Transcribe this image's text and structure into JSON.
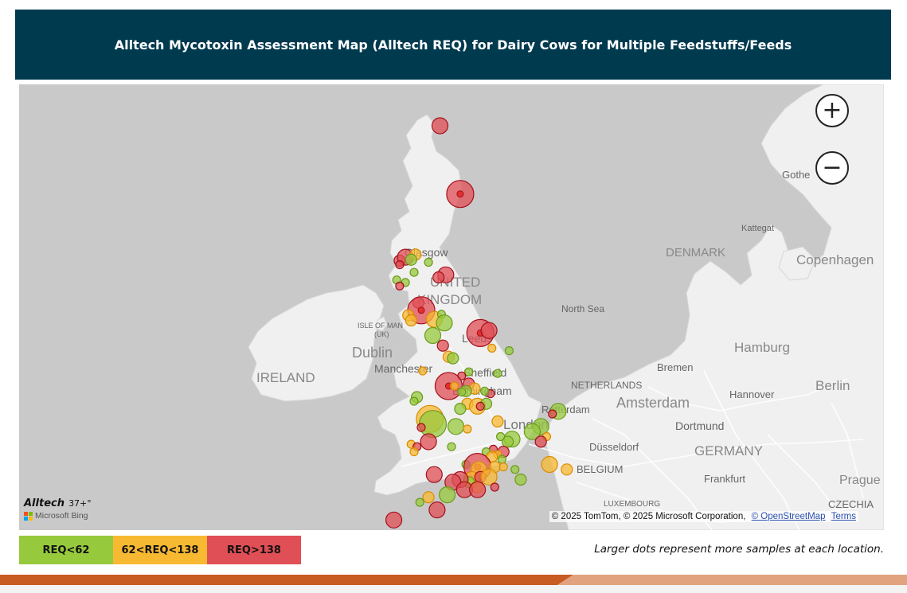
{
  "header": {
    "title": "Alltech Mycotoxin Assessment Map (Alltech REQ) for Dairy Cows for  Multiple Feedstuffs/Feeds"
  },
  "map": {
    "place_labels": [
      {
        "id": "glasgow",
        "text": "Glasgow"
      },
      {
        "id": "united",
        "text": "UNITED"
      },
      {
        "id": "kingdom",
        "text": "KINGDOM"
      },
      {
        "id": "isle-of-man",
        "text": "ISLE OF MAN"
      },
      {
        "id": "uk",
        "text": "(UK)"
      },
      {
        "id": "dublin",
        "text": "Dublin"
      },
      {
        "id": "ireland",
        "text": "IRELAND"
      },
      {
        "id": "leeds",
        "text": "Leeds"
      },
      {
        "id": "manchester",
        "text": "Manchester"
      },
      {
        "id": "sheffield",
        "text": "Sheffield"
      },
      {
        "id": "birmingham",
        "text": "Birmingham"
      },
      {
        "id": "london",
        "text": "London"
      },
      {
        "id": "north-sea",
        "text": "North Sea"
      },
      {
        "id": "denmark",
        "text": "DENMARK"
      },
      {
        "id": "copenhagen",
        "text": "Copenhagen"
      },
      {
        "id": "kattegat",
        "text": "Kattegat"
      },
      {
        "id": "gothenburg",
        "text": "Gothe"
      },
      {
        "id": "hamburg",
        "text": "Hamburg"
      },
      {
        "id": "bremen",
        "text": "Bremen"
      },
      {
        "id": "berlin",
        "text": "Berlin"
      },
      {
        "id": "hannover",
        "text": "Hannover"
      },
      {
        "id": "netherlands",
        "text": "NETHERLANDS"
      },
      {
        "id": "amsterdam",
        "text": "Amsterdam"
      },
      {
        "id": "rotterdam",
        "text": "Rotterdam"
      },
      {
        "id": "dortmund",
        "text": "Dortmund"
      },
      {
        "id": "germany",
        "text": "GERMANY"
      },
      {
        "id": "dusseldorf",
        "text": "Düsseldorf"
      },
      {
        "id": "belgium",
        "text": "BELGIUM"
      },
      {
        "id": "frankfurt",
        "text": "Frankfurt"
      },
      {
        "id": "prague",
        "text": "Prague"
      },
      {
        "id": "luxembourg",
        "text": "LUXEMBOURG"
      },
      {
        "id": "czechia",
        "text": "CZECHIA"
      }
    ],
    "zoom_in_symbol": "+",
    "zoom_out_symbol": "−",
    "attribution": {
      "text": "© 2025 TomTom, © 2025 Microsoft Corporation,",
      "osm_link": "© OpenStreetMap",
      "terms_link": "Terms"
    },
    "brand": {
      "alltech": "Alltech",
      "suffix": "37+°",
      "bing": "Microsoft Bing"
    }
  },
  "legend": [
    {
      "id": "low",
      "label": "REQ<62",
      "color": "#97c93d"
    },
    {
      "id": "mid",
      "label": "62<REQ<138",
      "color": "#f8b932"
    },
    {
      "id": "high",
      "label": "REQ>138",
      "color": "#e04f55"
    }
  ],
  "note": "Larger dots represent more samples at each location.",
  "colors": {
    "header_bg": "#003a4f",
    "map_water": "#c9c9c9",
    "map_land": "#f0f0f0",
    "bottom_bar": "#c85a23"
  },
  "markers": [
    {
      "lat": 58.45,
      "lon": -3.3,
      "category": "high",
      "size": "medium"
    },
    {
      "lat": 57.1,
      "lon": -2.6,
      "category": "high",
      "size": "large"
    },
    {
      "lat": 55.78,
      "lon": -4.7,
      "category": "high",
      "size": "small"
    },
    {
      "lat": 55.85,
      "lon": -4.5,
      "category": "high",
      "size": "medium"
    },
    {
      "lat": 55.9,
      "lon": -4.15,
      "category": "mid",
      "size": "small"
    },
    {
      "lat": 55.8,
      "lon": -4.3,
      "category": "low",
      "size": "small"
    },
    {
      "lat": 55.75,
      "lon": -3.7,
      "category": "low",
      "size": "tiny"
    },
    {
      "lat": 55.7,
      "lon": -4.7,
      "category": "high",
      "size": "tiny"
    },
    {
      "lat": 55.55,
      "lon": -4.2,
      "category": "low",
      "size": "tiny"
    },
    {
      "lat": 55.5,
      "lon": -3.1,
      "category": "high",
      "size": "medium"
    },
    {
      "lat": 55.45,
      "lon": -3.35,
      "category": "high",
      "size": "small"
    },
    {
      "lat": 55.4,
      "lon": -4.8,
      "category": "low",
      "size": "tiny"
    },
    {
      "lat": 55.35,
      "lon": -4.5,
      "category": "low",
      "size": "tiny"
    },
    {
      "lat": 55.28,
      "lon": -4.7,
      "category": "high",
      "size": "tiny"
    },
    {
      "lat": 54.95,
      "lon": -4.05,
      "category": "high",
      "size": "small"
    },
    {
      "lat": 54.8,
      "lon": -3.95,
      "category": "high",
      "size": "large"
    },
    {
      "lat": 54.7,
      "lon": -4.4,
      "category": "mid",
      "size": "small"
    },
    {
      "lat": 54.62,
      "lon": -3.5,
      "category": "mid",
      "size": "medium"
    },
    {
      "lat": 54.72,
      "lon": -3.25,
      "category": "low",
      "size": "tiny"
    },
    {
      "lat": 54.55,
      "lon": -3.15,
      "category": "low",
      "size": "medium"
    },
    {
      "lat": 54.6,
      "lon": -4.3,
      "category": "mid",
      "size": "small"
    },
    {
      "lat": 54.3,
      "lon": -3.55,
      "category": "low",
      "size": "medium"
    },
    {
      "lat": 54.35,
      "lon": -1.9,
      "category": "high",
      "size": "large"
    },
    {
      "lat": 54.4,
      "lon": -1.6,
      "category": "high",
      "size": "medium"
    },
    {
      "lat": 54.1,
      "lon": -3.2,
      "category": "high",
      "size": "small"
    },
    {
      "lat": 53.88,
      "lon": -3.0,
      "category": "mid",
      "size": "small"
    },
    {
      "lat": 53.85,
      "lon": -2.85,
      "category": "low",
      "size": "small"
    },
    {
      "lat": 54.05,
      "lon": -1.5,
      "category": "mid",
      "size": "tiny"
    },
    {
      "lat": 54.0,
      "lon": -0.9,
      "category": "low",
      "size": "tiny"
    },
    {
      "lat": 53.6,
      "lon": -3.9,
      "category": "mid",
      "size": "tiny"
    },
    {
      "lat": 53.58,
      "lon": -2.3,
      "category": "low",
      "size": "tiny"
    },
    {
      "lat": 53.55,
      "lon": -1.3,
      "category": "low",
      "size": "tiny"
    },
    {
      "lat": 53.5,
      "lon": -2.55,
      "category": "high",
      "size": "tiny"
    },
    {
      "lat": 53.3,
      "lon": -3.0,
      "category": "high",
      "size": "large"
    },
    {
      "lat": 53.35,
      "lon": -2.3,
      "category": "high",
      "size": "small"
    },
    {
      "lat": 53.3,
      "lon": -2.8,
      "category": "mid",
      "size": "tiny"
    },
    {
      "lat": 53.25,
      "lon": -2.1,
      "category": "mid",
      "size": "small"
    },
    {
      "lat": 53.2,
      "lon": -2.4,
      "category": "low",
      "size": "small"
    },
    {
      "lat": 53.18,
      "lon": -2.55,
      "category": "low",
      "size": "tiny"
    },
    {
      "lat": 53.15,
      "lon": -1.55,
      "category": "high",
      "size": "tiny"
    },
    {
      "lat": 53.2,
      "lon": -1.75,
      "category": "low",
      "size": "tiny"
    },
    {
      "lat": 53.08,
      "lon": -4.1,
      "category": "low",
      "size": "small"
    },
    {
      "lat": 53.0,
      "lon": -4.2,
      "category": "low",
      "size": "tiny"
    },
    {
      "lat": 52.95,
      "lon": -2.35,
      "category": "mid",
      "size": "small"
    },
    {
      "lat": 52.9,
      "lon": -2.0,
      "category": "mid",
      "size": "medium"
    },
    {
      "lat": 52.85,
      "lon": -2.6,
      "category": "low",
      "size": "small"
    },
    {
      "lat": 52.95,
      "lon": -1.7,
      "category": "low",
      "size": "small"
    },
    {
      "lat": 52.9,
      "lon": -1.9,
      "category": "high",
      "size": "tiny"
    },
    {
      "lat": 52.8,
      "lon": 0.8,
      "category": "low",
      "size": "medium"
    },
    {
      "lat": 52.75,
      "lon": 0.6,
      "category": "high",
      "size": "tiny"
    },
    {
      "lat": 52.65,
      "lon": -3.65,
      "category": "mid",
      "size": "large"
    },
    {
      "lat": 52.55,
      "lon": -3.55,
      "category": "low",
      "size": "large"
    },
    {
      "lat": 52.5,
      "lon": -2.75,
      "category": "low",
      "size": "medium"
    },
    {
      "lat": 52.45,
      "lon": -2.35,
      "category": "mid",
      "size": "tiny"
    },
    {
      "lat": 52.48,
      "lon": -3.95,
      "category": "high",
      "size": "tiny"
    },
    {
      "lat": 52.6,
      "lon": -1.3,
      "category": "mid",
      "size": "small"
    },
    {
      "lat": 52.5,
      "lon": 0.2,
      "category": "low",
      "size": "medium"
    },
    {
      "lat": 52.4,
      "lon": -0.1,
      "category": "low",
      "size": "medium"
    },
    {
      "lat": 52.3,
      "lon": 0.4,
      "category": "mid",
      "size": "tiny"
    },
    {
      "lat": 52.2,
      "lon": -3.7,
      "category": "high",
      "size": "medium"
    },
    {
      "lat": 52.15,
      "lon": -4.3,
      "category": "mid",
      "size": "tiny"
    },
    {
      "lat": 52.1,
      "lon": -4.1,
      "category": "high",
      "size": "tiny"
    },
    {
      "lat": 52.0,
      "lon": -4.2,
      "category": "mid",
      "size": "tiny"
    },
    {
      "lat": 52.25,
      "lon": -0.8,
      "category": "low",
      "size": "medium"
    },
    {
      "lat": 52.2,
      "lon": -0.95,
      "category": "low",
      "size": "small"
    },
    {
      "lat": 52.3,
      "lon": -1.2,
      "category": "low",
      "size": "tiny"
    },
    {
      "lat": 52.2,
      "lon": 0.2,
      "category": "high",
      "size": "small"
    },
    {
      "lat": 52.1,
      "lon": -2.9,
      "category": "low",
      "size": "tiny"
    },
    {
      "lat": 52.05,
      "lon": -1.45,
      "category": "high",
      "size": "tiny"
    },
    {
      "lat": 52.0,
      "lon": -1.1,
      "category": "high",
      "size": "small"
    },
    {
      "lat": 51.95,
      "lon": -1.3,
      "category": "mid",
      "size": "tiny"
    },
    {
      "lat": 52.0,
      "lon": -1.7,
      "category": "low",
      "size": "tiny"
    },
    {
      "lat": 51.9,
      "lon": -1.5,
      "category": "mid",
      "size": "small"
    },
    {
      "lat": 51.85,
      "lon": -1.15,
      "category": "low",
      "size": "tiny"
    },
    {
      "lat": 51.75,
      "lon": -2.4,
      "category": "low",
      "size": "tiny"
    },
    {
      "lat": 51.7,
      "lon": -2.0,
      "category": "high",
      "size": "large"
    },
    {
      "lat": 51.65,
      "lon": -1.95,
      "category": "mid",
      "size": "medium"
    },
    {
      "lat": 51.7,
      "lon": -1.4,
      "category": "mid",
      "size": "small"
    },
    {
      "lat": 51.7,
      "lon": -1.1,
      "category": "mid",
      "size": "tiny"
    },
    {
      "lat": 51.65,
      "lon": -0.7,
      "category": "low",
      "size": "tiny"
    },
    {
      "lat": 51.75,
      "lon": 0.5,
      "category": "mid",
      "size": "medium"
    },
    {
      "lat": 51.65,
      "lon": 1.1,
      "category": "mid",
      "size": "small"
    },
    {
      "lat": 51.55,
      "lon": -3.5,
      "category": "high",
      "size": "medium"
    },
    {
      "lat": 51.45,
      "lon": -2.2,
      "category": "mid",
      "size": "medium"
    },
    {
      "lat": 51.5,
      "lon": -1.9,
      "category": "high",
      "size": "small"
    },
    {
      "lat": 51.4,
      "lon": -2.3,
      "category": "low",
      "size": "small"
    },
    {
      "lat": 51.45,
      "lon": -2.6,
      "category": "high",
      "size": "medium"
    },
    {
      "lat": 51.4,
      "lon": -2.85,
      "category": "high",
      "size": "medium"
    },
    {
      "lat": 51.5,
      "lon": -1.6,
      "category": "mid",
      "size": "medium"
    },
    {
      "lat": 51.45,
      "lon": -0.5,
      "category": "low",
      "size": "small"
    },
    {
      "lat": 51.3,
      "lon": -2.0,
      "category": "mid",
      "size": "small"
    },
    {
      "lat": 51.25,
      "lon": -2.45,
      "category": "high",
      "size": "medium"
    },
    {
      "lat": 51.25,
      "lon": -2.0,
      "category": "high",
      "size": "medium"
    },
    {
      "lat": 51.3,
      "lon": -1.4,
      "category": "high",
      "size": "tiny"
    },
    {
      "lat": 51.15,
      "lon": -3.05,
      "category": "low",
      "size": "medium"
    },
    {
      "lat": 51.1,
      "lon": -3.7,
      "category": "mid",
      "size": "small"
    },
    {
      "lat": 51.0,
      "lon": -4.0,
      "category": "low",
      "size": "tiny"
    },
    {
      "lat": 50.85,
      "lon": -3.4,
      "category": "high",
      "size": "medium"
    },
    {
      "lat": 50.65,
      "lon": -4.9,
      "category": "high",
      "size": "medium"
    }
  ]
}
